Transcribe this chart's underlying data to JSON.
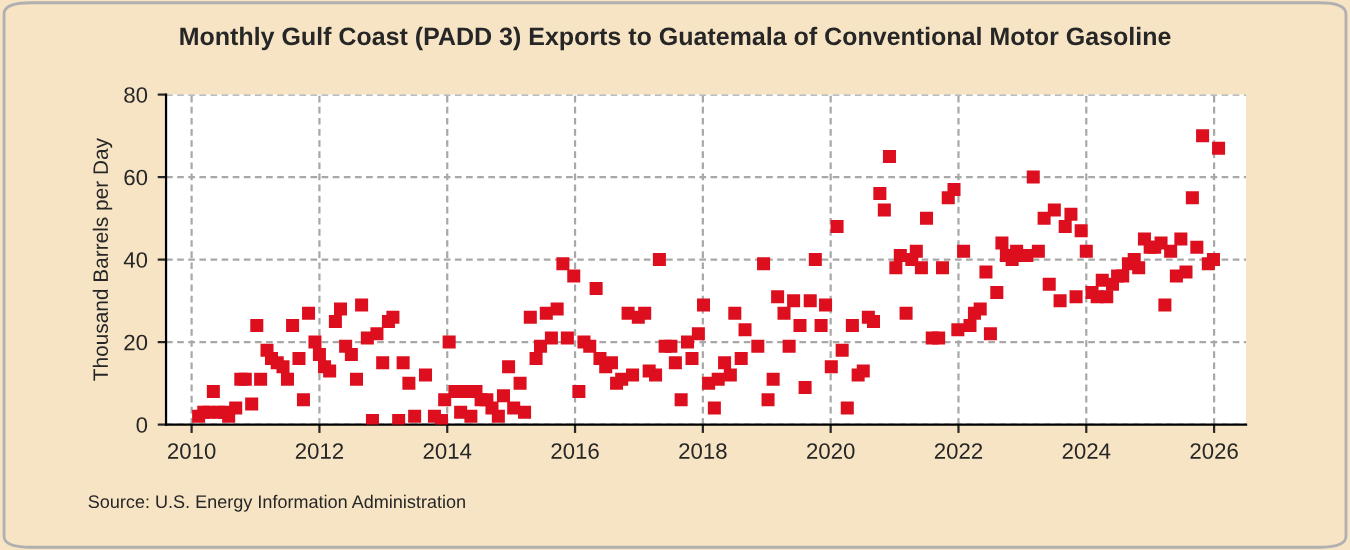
{
  "chart_data": {
    "type": "scatter",
    "title": "Monthly Gulf Coast (PADD 3) Exports to Guatemala of Conventional Motor Gasoline",
    "ylabel": "Thousand Barrels per Day",
    "annotations": [
      "Source: U.S. Energy Information Administration"
    ],
    "xlim": [
      2009.6,
      2026.5
    ],
    "xticks": [
      2010,
      2012,
      2014,
      2016,
      2018,
      2020,
      2022,
      2024,
      2026
    ],
    "ylim": [
      0,
      80
    ],
    "yticks": [
      0,
      20,
      40,
      60,
      80
    ],
    "grid": true,
    "marker": "square",
    "legend": false,
    "series": [
      {
        "color": "#dd0f1e",
        "x": [
          2010.11,
          2010.19,
          2010.27,
          2010.34,
          2010.43,
          2010.51,
          2010.58,
          2010.69,
          2010.77,
          2010.84,
          2010.94,
          2011.02,
          2011.08,
          2011.18,
          2011.25,
          2011.34,
          2011.43,
          2011.5,
          2011.58,
          2011.68,
          2011.75,
          2011.83,
          2011.93,
          2012.0,
          2012.08,
          2012.16,
          2012.25,
          2012.33,
          2012.41,
          2012.5,
          2012.58,
          2012.66,
          2012.75,
          2012.83,
          2012.9,
          2012.99,
          2013.08,
          2013.15,
          2013.24,
          2013.31,
          2013.4,
          2013.49,
          2013.66,
          2013.8,
          2013.91,
          2013.96,
          2014.03,
          2014.12,
          2014.21,
          2014.29,
          2014.37,
          2014.45,
          2014.53,
          2014.62,
          2014.7,
          2014.8,
          2014.88,
          2014.96,
          2015.04,
          2015.14,
          2015.21,
          2015.3,
          2015.39,
          2015.46,
          2015.55,
          2015.63,
          2015.72,
          2015.81,
          2015.88,
          2015.98,
          2016.06,
          2016.14,
          2016.23,
          2016.33,
          2016.39,
          2016.48,
          2016.57,
          2016.65,
          2016.73,
          2016.83,
          2016.9,
          2016.99,
          2017.09,
          2017.16,
          2017.26,
          2017.32,
          2017.41,
          2017.5,
          2017.57,
          2017.66,
          2017.76,
          2017.83,
          2017.93,
          2018.01,
          2018.09,
          2018.18,
          2018.24,
          2018.34,
          2018.43,
          2018.5,
          2018.6,
          2018.66,
          2018.86,
          2018.95,
          2019.02,
          2019.1,
          2019.17,
          2019.27,
          2019.35,
          2019.42,
          2019.52,
          2019.6,
          2019.68,
          2019.76,
          2019.85,
          2019.92,
          2020.01,
          2020.1,
          2020.18,
          2020.26,
          2020.34,
          2020.43,
          2020.51,
          2020.59,
          2020.67,
          2020.77,
          2020.84,
          2020.92,
          2021.02,
          2021.09,
          2021.18,
          2021.27,
          2021.34,
          2021.42,
          2021.5,
          2021.59,
          2021.69,
          2021.75,
          2021.84,
          2021.93,
          2021.99,
          2022.08,
          2022.18,
          2022.25,
          2022.34,
          2022.43,
          2022.5,
          2022.6,
          2022.68,
          2022.75,
          2022.84,
          2022.91,
          2023.01,
          2023.07,
          2023.17,
          2023.25,
          2023.34,
          2023.42,
          2023.5,
          2023.59,
          2023.67,
          2023.76,
          2023.84,
          2023.92,
          2024.0,
          2024.09,
          2024.17,
          2024.25,
          2024.32,
          2024.41,
          2024.49,
          2024.57,
          2024.66,
          2024.75,
          2024.82,
          2024.91,
          2025.0,
          2025.07,
          2025.17,
          2025.23,
          2025.32,
          2025.41,
          2025.48,
          2025.56,
          2025.66,
          2025.73,
          2025.82,
          2025.91,
          2025.99,
          2026.07
        ],
        "values": [
          2,
          3,
          3,
          8,
          3,
          3,
          2,
          4,
          11,
          11,
          5,
          24,
          11,
          18,
          16,
          15,
          14,
          11,
          24,
          16,
          6,
          27,
          20,
          17,
          14,
          13,
          25,
          28,
          19,
          17,
          11,
          29,
          21,
          1,
          22,
          15,
          25,
          26,
          1,
          15,
          10,
          2,
          12,
          2,
          1,
          6,
          20,
          8,
          3,
          8,
          2,
          8,
          6,
          6,
          4,
          2,
          7,
          14,
          4,
          10,
          3,
          26,
          16,
          19,
          27,
          21,
          28,
          39,
          21,
          36,
          8,
          20,
          19,
          33,
          16,
          14,
          15,
          10,
          11,
          27,
          12,
          26,
          27,
          13,
          12,
          40,
          19,
          19,
          15,
          6,
          20,
          16,
          22,
          29,
          10,
          4,
          11,
          15,
          12,
          27,
          16,
          23,
          19,
          39,
          6,
          11,
          31,
          27,
          19,
          30,
          24,
          9,
          30,
          40,
          24,
          29,
          14,
          48,
          18,
          4,
          24,
          12,
          13,
          26,
          25,
          56,
          52,
          65,
          38,
          41,
          27,
          40,
          42,
          38,
          50,
          21,
          21,
          38,
          55,
          57,
          23,
          42,
          24,
          27,
          28,
          37,
          22,
          32,
          44,
          41,
          40,
          42,
          41,
          41,
          60,
          42,
          50,
          34,
          52,
          30,
          48,
          51,
          31,
          47,
          42,
          32,
          31,
          35,
          31,
          34,
          36,
          36,
          39,
          40,
          38,
          45,
          43,
          43,
          44,
          29,
          42,
          36,
          45,
          37,
          55,
          43,
          70,
          39,
          40,
          67
        ]
      }
    ]
  }
}
